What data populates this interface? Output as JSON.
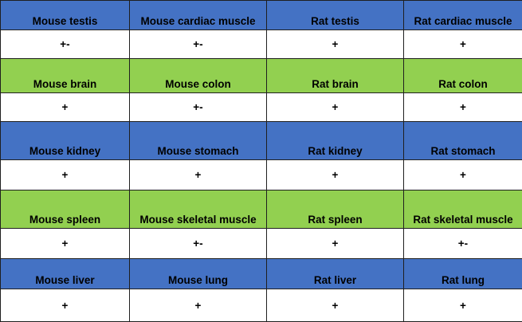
{
  "colors": {
    "blue_band": "#4472c4",
    "green_band": "#92d050",
    "value_row": "#ffffff"
  },
  "rows": [
    {
      "band": "blue",
      "labels": [
        "Mouse testis",
        "Mouse cardiac muscle",
        "Rat testis",
        "Rat cardiac muscle"
      ],
      "values": [
        "+-",
        "+-",
        "+",
        "+"
      ]
    },
    {
      "band": "green",
      "labels": [
        "Mouse brain",
        "Mouse colon",
        "Rat brain",
        "Rat colon"
      ],
      "values": [
        "+",
        "+-",
        "+",
        "+"
      ]
    },
    {
      "band": "blue",
      "labels": [
        "Mouse kidney",
        "Mouse stomach",
        "Rat kidney",
        "Rat stomach"
      ],
      "values": [
        "+",
        "+",
        "+",
        "+"
      ]
    },
    {
      "band": "green",
      "labels": [
        "Mouse spleen",
        "Mouse skeletal muscle",
        "Rat spleen",
        "Rat skeletal muscle"
      ],
      "values": [
        "+",
        "+-",
        "+",
        "+-"
      ]
    },
    {
      "band": "blue",
      "labels": [
        "Mouse liver",
        "Mouse lung",
        "Rat liver",
        "Rat lung"
      ],
      "values": [
        "+",
        "+",
        "+",
        "+"
      ]
    }
  ]
}
